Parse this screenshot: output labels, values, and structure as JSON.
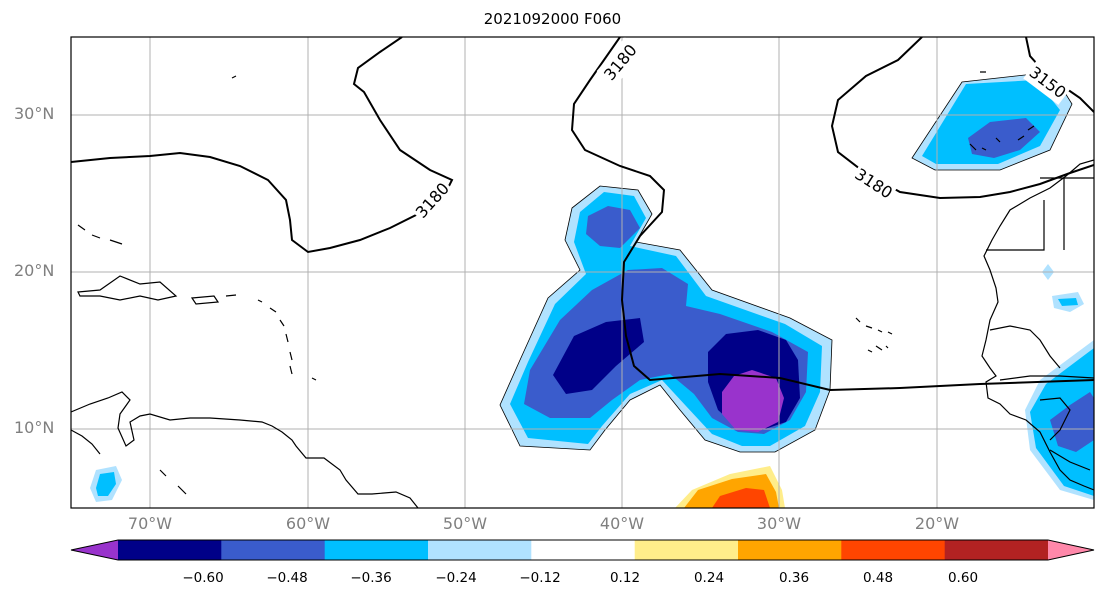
{
  "title": "2021092000 F060",
  "lat_labels": [
    "30°N",
    "20°N",
    "10°N"
  ],
  "lon_labels": [
    "70°W",
    "60°W",
    "50°W",
    "40°W",
    "30°W",
    "20°W"
  ],
  "contour_labels": [
    "3180",
    "3180",
    "3180",
    "3150"
  ],
  "colorbar": {
    "colors": [
      "#9933cc",
      "#000088",
      "#3a5ccc",
      "#00bfff",
      "#b0e2ff",
      "#ffffff",
      "#ffed8a",
      "#ffa500",
      "#ff4500",
      "#b22222",
      "#ff88aa"
    ],
    "labels": [
      "−0.60",
      "−0.48",
      "−0.36",
      "−0.24",
      "−0.12",
      "0.12",
      "0.24",
      "0.36",
      "0.48",
      "0.60"
    ]
  }
}
